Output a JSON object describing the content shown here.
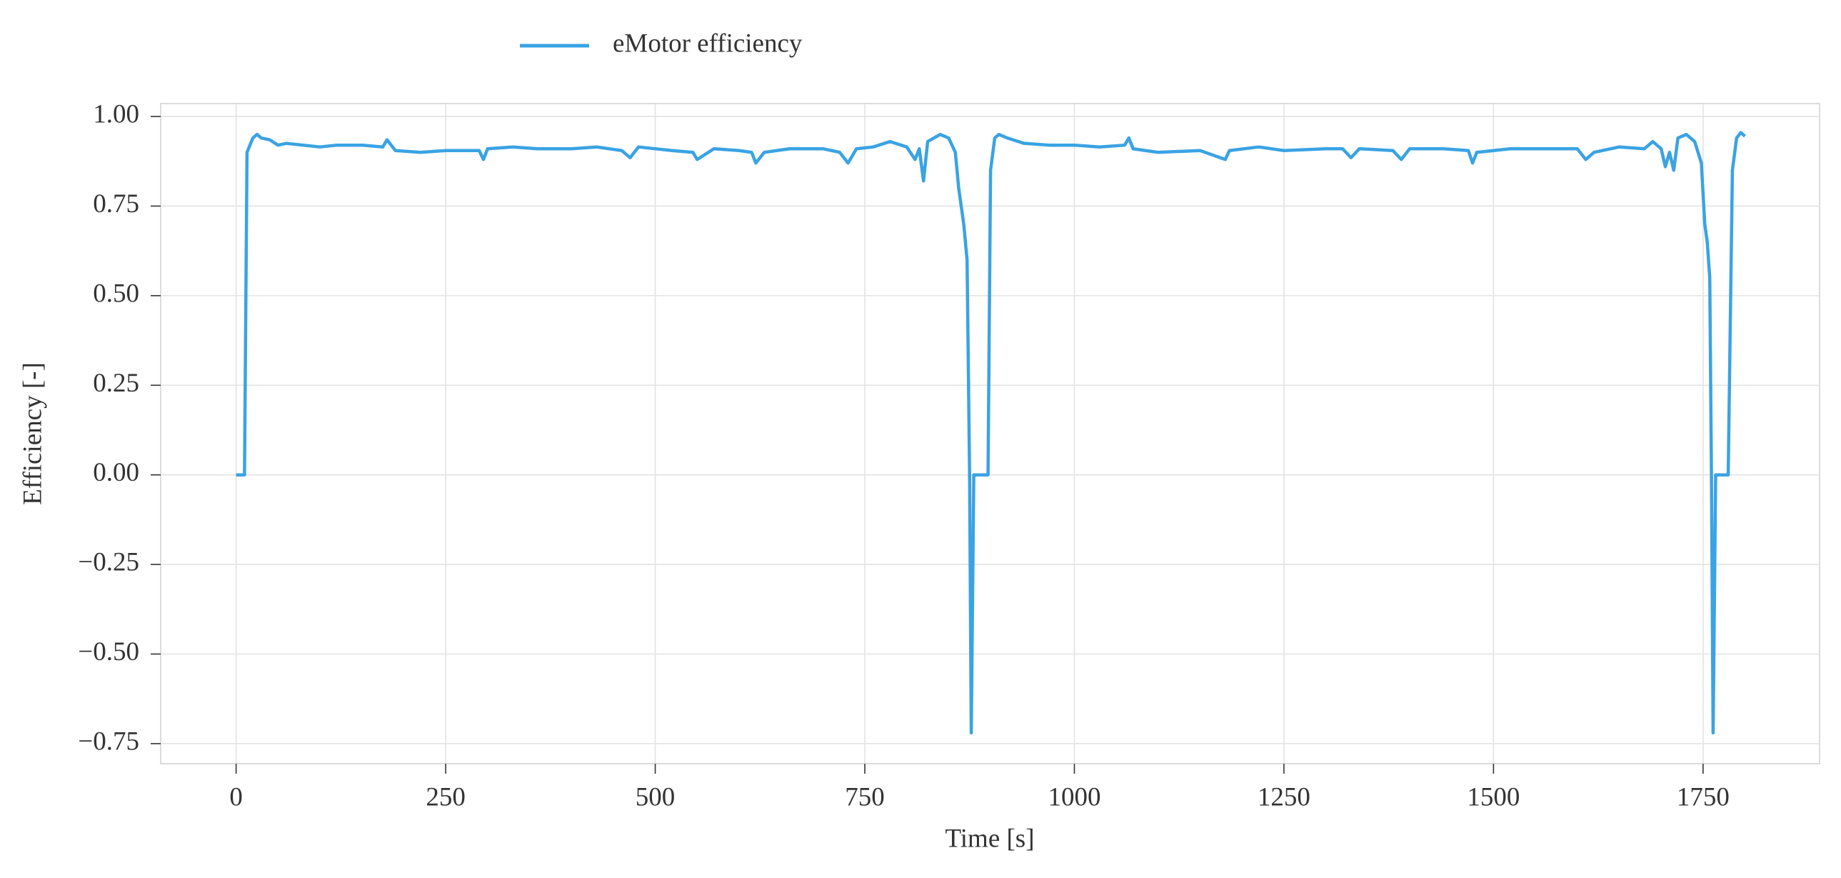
{
  "chart_data": {
    "type": "line",
    "xlabel": "Time [s]",
    "ylabel": "Efficiency [-]",
    "xlim": [
      -90,
      1889
    ],
    "ylim": [
      -0.806,
      1.036
    ],
    "xticks": [
      0,
      250,
      500,
      750,
      1000,
      1250,
      1500,
      1750
    ],
    "yticks": [
      {
        "value": -0.75,
        "label": "−0.75"
      },
      {
        "value": -0.5,
        "label": "−0.50"
      },
      {
        "value": -0.25,
        "label": "−0.25"
      },
      {
        "value": 0,
        "label": "0.00"
      },
      {
        "value": 0.25,
        "label": "0.25"
      },
      {
        "value": 0.5,
        "label": "0.50"
      },
      {
        "value": 0.75,
        "label": "0.75"
      },
      {
        "value": 1,
        "label": "1.00"
      }
    ],
    "grid": true,
    "legend": "top",
    "x": [
      0,
      10,
      13,
      20,
      25,
      30,
      40,
      50,
      60,
      80,
      100,
      120,
      150,
      175,
      180,
      190,
      220,
      250,
      290,
      295,
      300,
      330,
      360,
      400,
      430,
      460,
      470,
      480,
      520,
      545,
      550,
      570,
      600,
      615,
      620,
      630,
      660,
      700,
      720,
      730,
      740,
      760,
      780,
      800,
      810,
      815,
      820,
      825,
      840,
      850,
      858,
      862,
      868,
      872,
      875,
      877,
      880,
      897,
      900,
      905,
      910,
      920,
      940,
      970,
      1000,
      1030,
      1060,
      1065,
      1070,
      1100,
      1150,
      1180,
      1185,
      1220,
      1250,
      1300,
      1320,
      1330,
      1340,
      1380,
      1390,
      1400,
      1440,
      1470,
      1475,
      1480,
      1520,
      1560,
      1600,
      1610,
      1620,
      1650,
      1680,
      1690,
      1700,
      1705,
      1710,
      1715,
      1720,
      1730,
      1740,
      1748,
      1752,
      1755,
      1758,
      1760,
      1762,
      1765,
      1780,
      1785,
      1790,
      1795,
      1800
    ],
    "series": [
      {
        "name": "eMotor efficiency",
        "color": "#3aa3e3",
        "values": [
          0,
          0,
          0.9,
          0.94,
          0.95,
          0.94,
          0.935,
          0.92,
          0.925,
          0.92,
          0.915,
          0.92,
          0.92,
          0.915,
          0.935,
          0.905,
          0.9,
          0.905,
          0.905,
          0.88,
          0.91,
          0.915,
          0.91,
          0.91,
          0.915,
          0.905,
          0.885,
          0.915,
          0.905,
          0.9,
          0.88,
          0.91,
          0.905,
          0.9,
          0.87,
          0.9,
          0.91,
          0.91,
          0.9,
          0.87,
          0.91,
          0.915,
          0.93,
          0.915,
          0.88,
          0.91,
          0.82,
          0.93,
          0.95,
          0.94,
          0.9,
          0.8,
          0.7,
          0.6,
          0,
          -0.72,
          0,
          0,
          0.85,
          0.94,
          0.95,
          0.94,
          0.925,
          0.92,
          0.92,
          0.915,
          0.92,
          0.94,
          0.91,
          0.9,
          0.905,
          0.88,
          0.905,
          0.915,
          0.905,
          0.91,
          0.91,
          0.885,
          0.91,
          0.905,
          0.88,
          0.91,
          0.91,
          0.905,
          0.87,
          0.9,
          0.91,
          0.91,
          0.91,
          0.88,
          0.9,
          0.915,
          0.91,
          0.93,
          0.91,
          0.86,
          0.9,
          0.85,
          0.94,
          0.95,
          0.93,
          0.87,
          0.7,
          0.65,
          0.55,
          0,
          -0.72,
          0,
          0,
          0.85,
          0.94,
          0.955,
          0.945
        ]
      }
    ]
  }
}
